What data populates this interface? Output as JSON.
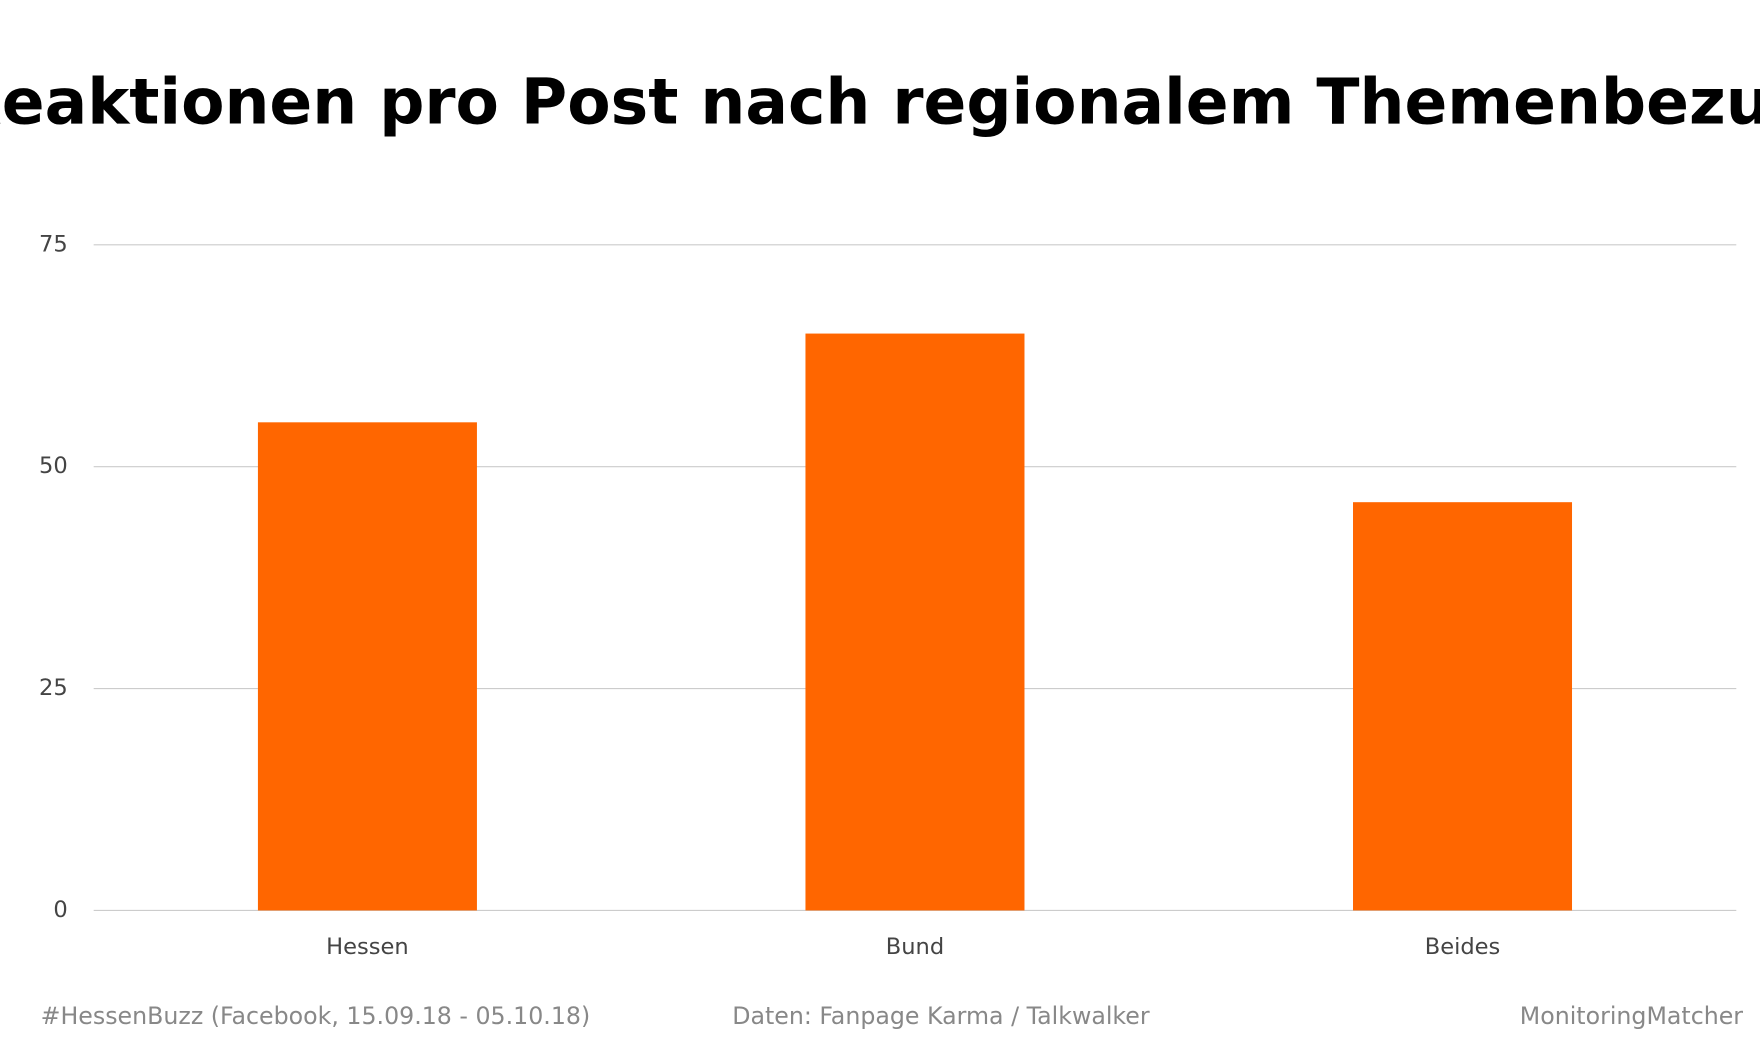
{
  "chart_data": {
    "type": "bar",
    "title": "Reaktionen pro Post nach regionalem Themenbezug",
    "categories": [
      "Hessen",
      "Bund",
      "Beides"
    ],
    "values": [
      55,
      65,
      46
    ],
    "color": "#ff6600",
    "ylim": [
      0,
      75
    ],
    "yticks": [
      0,
      25,
      50,
      75
    ],
    "grid": true,
    "footer": [
      "#HessenBuzz (Facebook, 15.09.18 - 05.10.18)",
      "Daten: Fanpage Karma / Talkwalker",
      "MonitoringMatcher"
    ]
  }
}
